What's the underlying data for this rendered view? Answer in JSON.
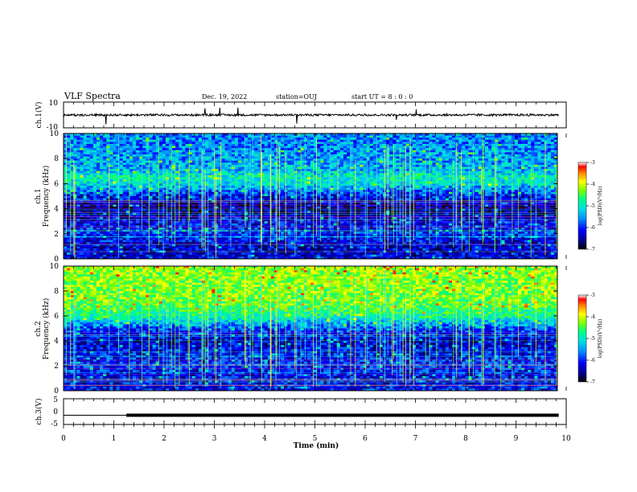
{
  "header": {
    "title": "VLF Spectra",
    "date": "Dec. 19, 2022",
    "station": "station=OUJ",
    "start": "start  UT  =   8  :  0  :  0"
  },
  "colors": {
    "background": "#ffffff",
    "axes": "#000000",
    "signal_trace": "#000000",
    "colormap": [
      "#000000",
      "#00008b",
      "#0000ff",
      "#0080ff",
      "#00c0ff",
      "#00ffc0",
      "#80ff00",
      "#ffff00",
      "#ff8000",
      "#ff0000",
      "#ffffff"
    ]
  },
  "chart_data": [
    {
      "type": "line",
      "panel": "ch1-waveform",
      "ylabel": "ch.1(V)",
      "ylim": [
        -10,
        10
      ],
      "yticks": [
        "10",
        "-10"
      ],
      "x": [
        0,
        1,
        2,
        3,
        4,
        5,
        6,
        7,
        8,
        9,
        9.85
      ],
      "values": [
        0,
        0,
        0,
        0,
        0,
        0,
        0,
        0,
        0,
        0,
        0
      ],
      "grid": false
    },
    {
      "type": "heatmap",
      "panel": "ch1-spectrogram",
      "ylabel": "ch.1\nFrequency  (kHz)",
      "ylim": [
        0,
        10
      ],
      "yticks": [
        "0",
        "2",
        "4",
        "6",
        "8",
        "10"
      ],
      "xlim": [
        0,
        10
      ],
      "colorbar": {
        "label": "log(PSD)(V²/Hz)",
        "ticks": [
          "-3",
          "-4",
          "-5",
          "-6",
          "-7"
        ],
        "range": [
          -7,
          -3
        ]
      },
      "band_profile": {
        "freq_khz": [
          0,
          1,
          2,
          3,
          4,
          5,
          6,
          6.5,
          7,
          8,
          9,
          10
        ],
        "log_psd": [
          -6.3,
          -6.4,
          -6.1,
          -6.3,
          -6.6,
          -6.2,
          -5.4,
          -5.2,
          -5.6,
          -5.7,
          -5.8,
          -5.8
        ]
      }
    },
    {
      "type": "heatmap",
      "panel": "ch2-spectrogram",
      "ylabel": "ch.2\nFrequency  (kHz)",
      "ylim": [
        0,
        10
      ],
      "yticks": [
        "0",
        "2",
        "4",
        "6",
        "8",
        "10"
      ],
      "xlim": [
        0,
        10
      ],
      "colorbar": {
        "label": "log(PSD)(V²/Hz)",
        "ticks": [
          "-3",
          "-4",
          "-5",
          "-6",
          "-7"
        ],
        "range": [
          -7,
          -3
        ]
      },
      "band_profile": {
        "freq_khz": [
          0,
          1,
          2,
          3,
          4,
          5,
          6,
          6.5,
          7,
          8,
          9,
          10
        ],
        "log_psd": [
          -6.2,
          -6.3,
          -6.1,
          -6.2,
          -6.4,
          -6.0,
          -5.1,
          -4.9,
          -4.7,
          -4.6,
          -4.6,
          -4.5
        ]
      }
    },
    {
      "type": "line",
      "panel": "ch3-level",
      "ylabel": "ch.3(V)",
      "ylim": [
        -5,
        5
      ],
      "yticks": [
        "5",
        "0",
        "-5"
      ],
      "x": [
        0,
        1.25,
        1.25,
        9.85
      ],
      "values": [
        -1.4,
        -1.4,
        -1.4,
        -1.4
      ],
      "grid": false
    }
  ],
  "xaxis": {
    "xlabel": "Time  (min)",
    "xlim": [
      0,
      10
    ],
    "ticks": [
      "0",
      "1",
      "2",
      "3",
      "4",
      "5",
      "6",
      "7",
      "8",
      "9",
      "10"
    ]
  }
}
